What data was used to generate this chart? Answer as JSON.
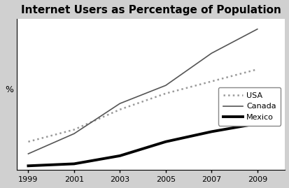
{
  "title": "Internet Users as Percentage of Population",
  "ylabel": "%",
  "years": [
    1999,
    2001,
    2003,
    2005,
    2007,
    2009
  ],
  "usa": [
    14,
    20,
    30,
    38,
    44,
    50
  ],
  "canada": [
    8,
    18,
    33,
    42,
    58,
    70
  ],
  "mexico": [
    2,
    3,
    7,
    14,
    19,
    23
  ],
  "usa_color": "#999999",
  "canada_color": "#555555",
  "mexico_color": "#000000",
  "bg_color": "#ffffff",
  "outer_bg": "#d0d0d0",
  "legend_labels": [
    "USA",
    "Canada",
    "Mexico"
  ],
  "xlim": [
    1998.5,
    2010.2
  ],
  "ylim": [
    0,
    75
  ],
  "xticks": [
    1999,
    2001,
    2003,
    2005,
    2007,
    2009
  ],
  "title_fontsize": 11,
  "tick_fontsize": 8,
  "ylabel_fontsize": 9
}
